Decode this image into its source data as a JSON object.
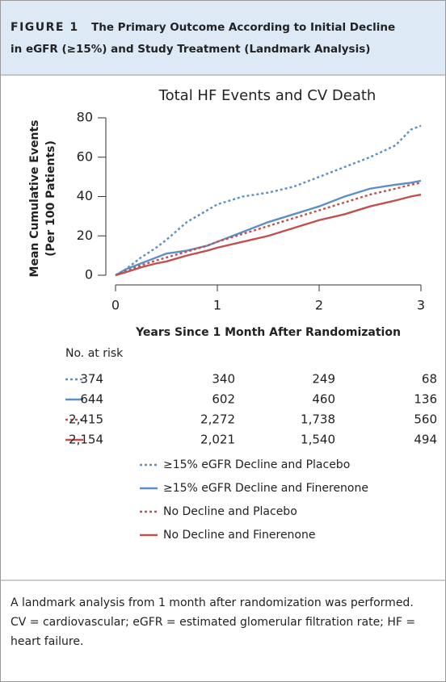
{
  "figure_label": "FIGURE 1",
  "figure_title": "The Primary Outcome According to Initial Decline in eGFR (≥15%) and Study Treatment (Landmark Analysis)",
  "caption": "A landmark analysis from 1 month after randomization was performed. CV = cardiovascular; eGFR = estimated glomerular filtration rate; HF = heart failure.",
  "chart_data": {
    "type": "line",
    "title": "Total HF Events and CV Death",
    "x_label": "Years Since 1 Month After Randomization",
    "y_label": [
      "Mean Cumulative Events",
      "(Per 100 Patients)"
    ],
    "x": [
      0,
      0.1,
      0.25,
      0.4,
      0.5,
      0.7,
      0.9,
      1,
      1.25,
      1.5,
      1.75,
      2,
      2.25,
      2.5,
      2.75,
      2.9,
      3
    ],
    "xlim": [
      0,
      3
    ],
    "xticks": [
      0,
      1,
      2,
      3
    ],
    "ylim": [
      0,
      80
    ],
    "yticks": [
      0,
      20,
      40,
      60,
      80
    ],
    "at_risk_title": "No. at risk",
    "series": [
      {
        "name": "≥15% eGFR Decline and Placebo",
        "color": "#5b8fc6",
        "dashed": true,
        "values": [
          0,
          3,
          9,
          14,
          18,
          27,
          33,
          36,
          40,
          42,
          45,
          50,
          55,
          60,
          66,
          74,
          76
        ],
        "at_risk": [
          374,
          340,
          249,
          68
        ]
      },
      {
        "name": "≥15% eGFR Decline and Finerenone",
        "color": "#5b8fc6",
        "dashed": false,
        "values": [
          0,
          3,
          6,
          9,
          11,
          12.5,
          15,
          17,
          22,
          27,
          31,
          35,
          40,
          44,
          46,
          47,
          48
        ],
        "at_risk": [
          644,
          602,
          460,
          136
        ]
      },
      {
        "name": "No Decline and Placebo",
        "color": "#c0504d",
        "dashed": true,
        "values": [
          0,
          2,
          5,
          7.5,
          9,
          12,
          15,
          17,
          21,
          25,
          29,
          33,
          37,
          41,
          44,
          46,
          47
        ],
        "at_risk": [
          {
            "value": 2415,
            "label": "2,415"
          },
          {
            "value": 2272,
            "label": "2,272"
          },
          {
            "value": 1738,
            "label": "1,738"
          },
          560
        ]
      },
      {
        "name": "No Decline and Finerenone",
        "color": "#c0504d",
        "dashed": false,
        "values": [
          0,
          1.5,
          4,
          6,
          7,
          10,
          12.5,
          14,
          17,
          20,
          24,
          28,
          31,
          35,
          38,
          40,
          41
        ],
        "at_risk": [
          {
            "value": 2154,
            "label": "2,154"
          },
          {
            "value": 2021,
            "label": "2,021"
          },
          {
            "value": 1540,
            "label": "1,540"
          },
          494
        ]
      }
    ]
  }
}
